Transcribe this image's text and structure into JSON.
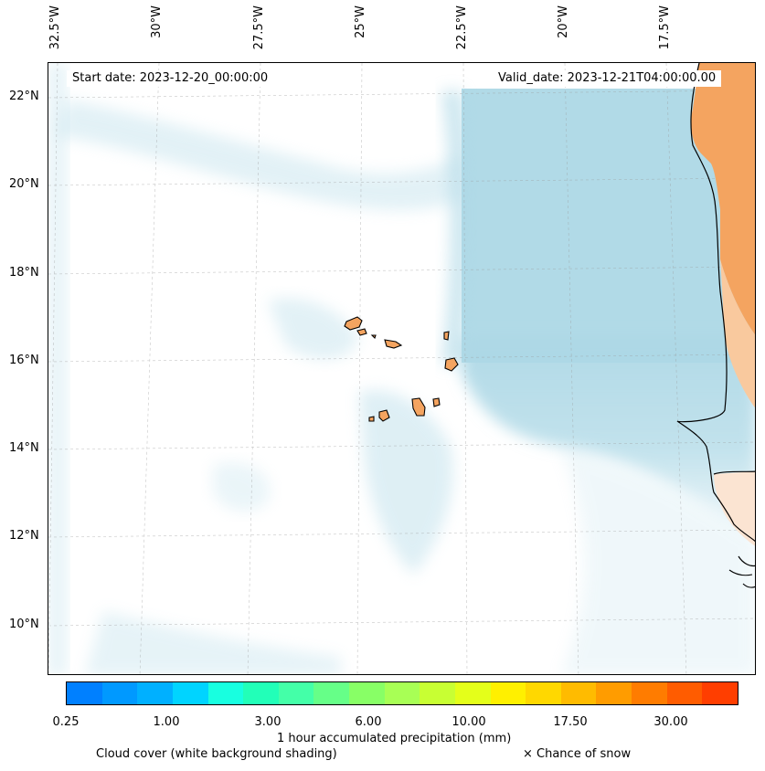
{
  "header": {
    "start_date": "Start date: 2023-12-20_00:00:00",
    "valid_date": "Valid_date: 2023-12-21T04:00:00.00"
  },
  "axes": {
    "lon_labels": [
      "32.5°W",
      "30°W",
      "27.5°W",
      "25°W",
      "22.5°W",
      "20°W",
      "17.5°W"
    ],
    "lat_labels": [
      "22°N",
      "20°N",
      "18°N",
      "16°N",
      "14°N",
      "12°N",
      "10°N"
    ]
  },
  "legend": {
    "colorbar_ticks": [
      "0.25",
      "1.00",
      "3.00",
      "6.00",
      "10.00",
      "17.50",
      "30.00"
    ],
    "colorbar_label": "1 hour accumulated precipitation (mm)",
    "cloud_caption": "Cloud cover (white background shading)",
    "snow_caption": "× Chance of snow",
    "colors": [
      "#0080ff",
      "#0099ff",
      "#00b0ff",
      "#00d4ff",
      "#18ffe0",
      "#22ffb8",
      "#44ffa8",
      "#66ff88",
      "#88ff66",
      "#a8ff55",
      "#c8ff33",
      "#e4ff1a",
      "#fff000",
      "#ffd800",
      "#ffbb00",
      "#ff9c00",
      "#ff7c00",
      "#ff5c00",
      "#ff3e00"
    ]
  },
  "map": {
    "land_color": "#f4a460",
    "cloud_color": "#add8e6"
  }
}
